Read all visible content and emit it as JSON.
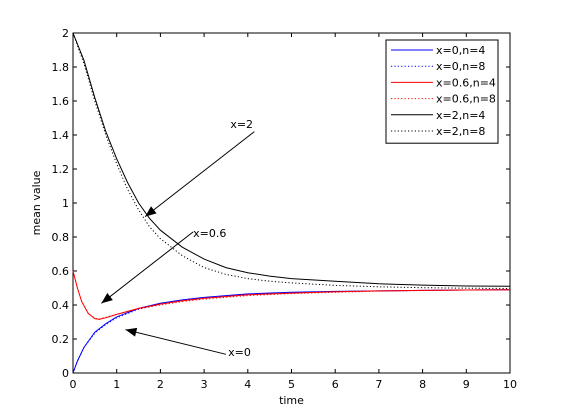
{
  "chart_data": {
    "type": "line",
    "xlabel": "time",
    "ylabel": "mean value",
    "xlim": [
      0,
      10
    ],
    "ylim": [
      0,
      2
    ],
    "xticks": [
      0,
      1,
      2,
      3,
      4,
      5,
      6,
      7,
      8,
      9,
      10
    ],
    "yticks": [
      0,
      0.2,
      0.4,
      0.6,
      0.8,
      1,
      1.2,
      1.4,
      1.6,
      1.8,
      2
    ],
    "ytick_labels": [
      "0",
      "0.2",
      "0.4",
      "0.6",
      "0.8",
      "1",
      "1.2",
      "1.4",
      "1.6",
      "1.8",
      "2"
    ],
    "grid": false,
    "legend_position": "top-right",
    "series": [
      {
        "name": "x=0,n=4",
        "color": "#0000ff",
        "style": "solid",
        "x": [
          0,
          0.1,
          0.25,
          0.5,
          0.75,
          1,
          1.5,
          2,
          2.5,
          3,
          4,
          5,
          6,
          7,
          8,
          9,
          10
        ],
        "y": [
          0,
          0.07,
          0.15,
          0.24,
          0.29,
          0.33,
          0.38,
          0.41,
          0.43,
          0.445,
          0.465,
          0.475,
          0.48,
          0.483,
          0.486,
          0.488,
          0.49
        ]
      },
      {
        "name": "x=0,n=8",
        "color": "#0000ff",
        "style": "dotted",
        "x": [
          0,
          0.1,
          0.25,
          0.5,
          0.75,
          1,
          1.5,
          2,
          2.5,
          3,
          4,
          5,
          6,
          7,
          8,
          9,
          10
        ],
        "y": [
          0,
          0.07,
          0.15,
          0.235,
          0.285,
          0.325,
          0.375,
          0.405,
          0.425,
          0.44,
          0.46,
          0.472,
          0.479,
          0.483,
          0.486,
          0.488,
          0.49
        ]
      },
      {
        "name": "x=0.6,n=4",
        "color": "#ff0000",
        "style": "solid",
        "x": [
          0,
          0.1,
          0.2,
          0.35,
          0.5,
          0.6,
          0.75,
          1,
          1.5,
          2,
          2.5,
          3,
          4,
          5,
          6,
          7,
          8,
          9,
          10
        ],
        "y": [
          0.6,
          0.5,
          0.42,
          0.35,
          0.32,
          0.315,
          0.325,
          0.345,
          0.38,
          0.405,
          0.425,
          0.44,
          0.46,
          0.47,
          0.478,
          0.483,
          0.486,
          0.488,
          0.49
        ]
      },
      {
        "name": "x=0.6,n=8",
        "color": "#ff0000",
        "style": "dotted",
        "x": [
          0,
          0.1,
          0.2,
          0.35,
          0.5,
          0.6,
          0.75,
          1,
          1.5,
          2,
          2.5,
          3,
          4,
          5,
          6,
          7,
          8,
          9,
          10
        ],
        "y": [
          0.6,
          0.5,
          0.42,
          0.35,
          0.322,
          0.318,
          0.328,
          0.345,
          0.378,
          0.4,
          0.42,
          0.435,
          0.455,
          0.467,
          0.475,
          0.481,
          0.485,
          0.488,
          0.49
        ]
      },
      {
        "name": "x=2,n=4",
        "color": "#000000",
        "style": "solid",
        "x": [
          0,
          0.25,
          0.5,
          0.75,
          1,
          1.25,
          1.5,
          1.75,
          2,
          2.5,
          3,
          3.5,
          4,
          4.5,
          5,
          6,
          7,
          8,
          9,
          10
        ],
        "y": [
          2,
          1.84,
          1.62,
          1.42,
          1.26,
          1.12,
          1.0,
          0.91,
          0.84,
          0.74,
          0.67,
          0.62,
          0.59,
          0.57,
          0.555,
          0.54,
          0.525,
          0.517,
          0.512,
          0.51
        ]
      },
      {
        "name": "x=2,n=8",
        "color": "#000000",
        "style": "dotted",
        "x": [
          0,
          0.25,
          0.5,
          0.75,
          1,
          1.25,
          1.5,
          1.75,
          2,
          2.5,
          3,
          3.5,
          4,
          4.5,
          5,
          6,
          7,
          8,
          9,
          10
        ],
        "y": [
          2,
          1.82,
          1.6,
          1.4,
          1.23,
          1.08,
          0.96,
          0.86,
          0.79,
          0.69,
          0.62,
          0.58,
          0.555,
          0.54,
          0.53,
          0.515,
          0.507,
          0.502,
          0.499,
          0.497
        ]
      }
    ],
    "annotations": [
      {
        "text": "x=2",
        "text_at": [
          3.6,
          1.44
        ],
        "from": [
          4.15,
          1.42
        ],
        "to": [
          1.65,
          0.92
        ]
      },
      {
        "text": "x=0.6",
        "text_at": [
          2.75,
          0.8
        ],
        "from": [
          2.75,
          0.83
        ],
        "to": [
          0.65,
          0.41
        ]
      },
      {
        "text": "x=0",
        "text_at": [
          3.55,
          0.1
        ],
        "from": [
          3.5,
          0.11
        ],
        "to": [
          1.2,
          0.255
        ]
      }
    ]
  }
}
